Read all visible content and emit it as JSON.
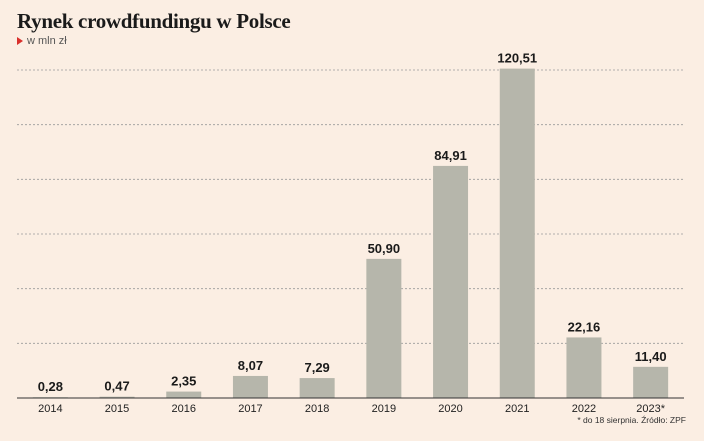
{
  "title": "Rynek crowdfundingu w Polsce",
  "subtitle": "w mln zł",
  "footnote": "* do 18 sierpnia. Źródło: ZPF",
  "colors": {
    "background": "#fbeee3",
    "bar": "#b6b6ab",
    "marker": "#d9302c",
    "grid": "#9a9a9a"
  },
  "chart_data": {
    "type": "bar",
    "categories": [
      "2014",
      "2015",
      "2016",
      "2017",
      "2018",
      "2019",
      "2020",
      "2021",
      "2022",
      "2023*"
    ],
    "values": [
      0.28,
      0.47,
      2.35,
      8.07,
      7.29,
      50.9,
      84.91,
      120.51,
      22.16,
      11.4
    ],
    "value_labels": [
      "0,28",
      "0,47",
      "2,35",
      "8,07",
      "7,29",
      "50,90",
      "84,91",
      "120,51",
      "22,16",
      "11,40"
    ],
    "ylim": [
      0,
      120
    ],
    "grid": true,
    "grid_style": "dashed",
    "xlabel": "",
    "ylabel": ""
  }
}
